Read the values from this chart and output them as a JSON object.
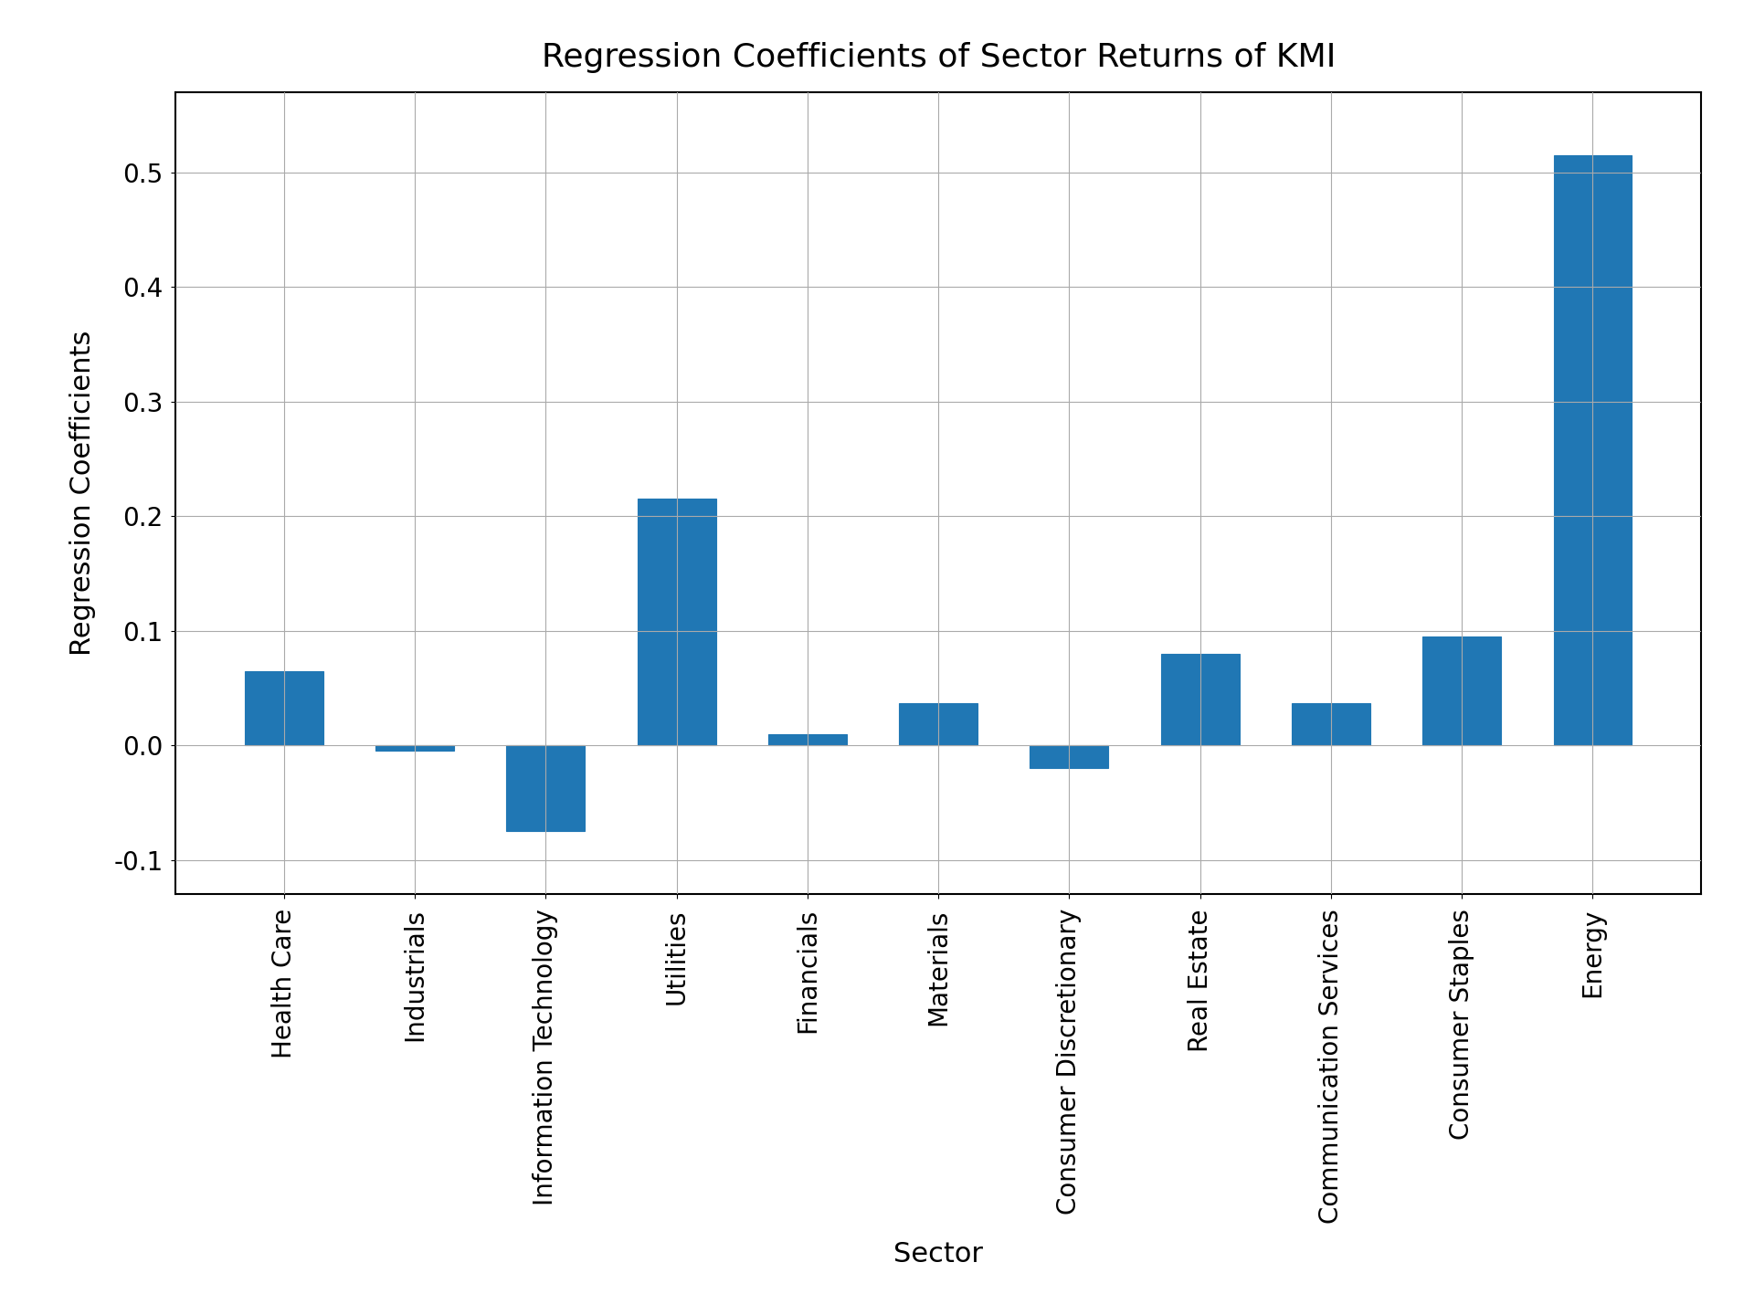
{
  "categories": [
    "Health Care",
    "Industrials",
    "Information Technology",
    "Utilities",
    "Financials",
    "Materials",
    "Consumer Discretionary",
    "Real Estate",
    "Communication Services",
    "Consumer Staples",
    "Energy"
  ],
  "values": [
    0.065,
    -0.005,
    -0.075,
    0.215,
    0.01,
    0.037,
    -0.02,
    0.08,
    0.037,
    0.095,
    0.515
  ],
  "bar_color": "#2077b4",
  "title": "Regression Coefficients of Sector Returns of KMI",
  "xlabel": "Sector",
  "ylabel": "Regression Coefficients",
  "ylim": [
    -0.13,
    0.57
  ],
  "title_fontsize": 26,
  "label_fontsize": 22,
  "tick_fontsize": 20,
  "xtick_fontsize": 20,
  "background_color": "#ffffff",
  "grid_color": "#aaaaaa"
}
